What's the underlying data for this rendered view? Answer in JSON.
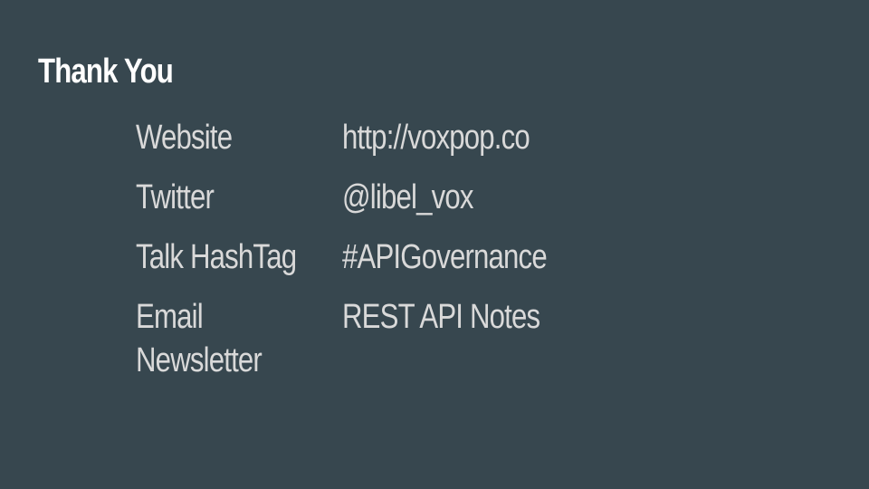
{
  "slide": {
    "title": "Thank You",
    "rows": [
      {
        "label": "Website",
        "value": "http://voxpop.co"
      },
      {
        "label": "Twitter",
        "value": "@libel_vox"
      },
      {
        "label": "Talk HashTag",
        "value": "#APIGovernance"
      },
      {
        "label_line1": "Email",
        "label_line2": "Newsletter",
        "value": "REST API Notes"
      }
    ],
    "colors": {
      "background": "#37474f",
      "title": "#ffffff",
      "body_text": "#d9d9d9"
    }
  }
}
